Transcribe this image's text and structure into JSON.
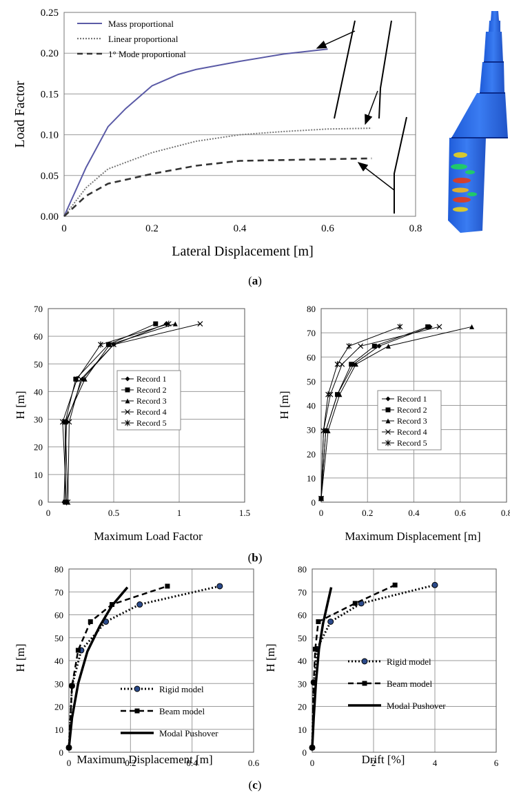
{
  "captions": {
    "a": "a",
    "b": "b",
    "c": "c"
  },
  "chart_data": [
    {
      "id": "a",
      "type": "line",
      "xlabel": "Lateral Displacement [m]",
      "ylabel": "Load Factor",
      "xlim": [
        0,
        0.8
      ],
      "ylim": [
        0,
        0.25
      ],
      "xticks": [
        "0",
        "0.2",
        "0.4",
        "0.6",
        "0.8"
      ],
      "yticks": [
        "0.00",
        "0.05",
        "0.10",
        "0.15",
        "0.20",
        "0.25"
      ],
      "grid": "horizontal",
      "legend_position": "top-left",
      "series": [
        {
          "name": "Mass proportional",
          "style": "solid",
          "color": "#5a5aa6",
          "x": [
            0,
            0.05,
            0.1,
            0.14,
            0.2,
            0.26,
            0.3,
            0.4,
            0.5,
            0.6
          ],
          "y": [
            0,
            0.06,
            0.11,
            0.132,
            0.16,
            0.174,
            0.18,
            0.19,
            0.199,
            0.205
          ]
        },
        {
          "name": "Linear proportional",
          "style": "dotted",
          "color": "#777777",
          "x": [
            0,
            0.05,
            0.1,
            0.2,
            0.3,
            0.4,
            0.5,
            0.6,
            0.7
          ],
          "y": [
            0,
            0.035,
            0.058,
            0.078,
            0.092,
            0.1,
            0.104,
            0.107,
            0.108
          ]
        },
        {
          "name": "1° Mode proportional",
          "style": "dashed",
          "color": "#333333",
          "x": [
            0,
            0.05,
            0.1,
            0.2,
            0.3,
            0.4,
            0.5,
            0.6,
            0.7
          ],
          "y": [
            0,
            0.025,
            0.04,
            0.052,
            0.062,
            0.068,
            0.069,
            0.07,
            0.071
          ]
        }
      ],
      "annotations": "arrows pointing to deformed chimney profiles",
      "image": "chimney 3D model with stress contour"
    },
    {
      "id": "b-left",
      "type": "line",
      "xlabel": "Maximum Load Factor",
      "ylabel": "H [m]",
      "xlim": [
        0,
        1.5
      ],
      "ylim": [
        0,
        70
      ],
      "xticks": [
        "0",
        "0.5",
        "1",
        "1.5"
      ],
      "yticks": [
        "0",
        "10",
        "20",
        "30",
        "40",
        "50",
        "60",
        "70"
      ],
      "grid": "both",
      "legend_position": "center",
      "series": [
        {
          "name": "Record 1",
          "marker": "diamond",
          "x": [
            0.12,
            0.14,
            0.26,
            0.5,
            0.9
          ],
          "y": [
            0,
            29,
            44.5,
            57,
            64.5
          ]
        },
        {
          "name": "Record 2",
          "marker": "square",
          "x": [
            0.13,
            0.13,
            0.21,
            0.46,
            0.82
          ],
          "y": [
            0,
            29,
            44.5,
            57,
            64.5
          ]
        },
        {
          "name": "Record 3",
          "marker": "triangle",
          "x": [
            0.15,
            0.13,
            0.28,
            0.47,
            0.97
          ],
          "y": [
            0,
            29,
            44.5,
            57,
            64.5
          ]
        },
        {
          "name": "Record 4",
          "marker": "x",
          "x": [
            0.15,
            0.16,
            0.25,
            0.5,
            1.16
          ],
          "y": [
            0,
            29,
            44.5,
            57,
            64.5
          ]
        },
        {
          "name": "Record 5",
          "marker": "star",
          "x": [
            0.14,
            0.11,
            0.22,
            0.4,
            0.92
          ],
          "y": [
            0,
            29,
            44.5,
            57,
            64.5
          ]
        }
      ]
    },
    {
      "id": "b-right",
      "type": "line",
      "xlabel": "Maximum Displacement [m]",
      "ylabel": "H [m]",
      "xlim": [
        0,
        0.8
      ],
      "ylim": [
        0,
        80
      ],
      "xticks": [
        "0",
        "0.2",
        "0.4",
        "0.6",
        "0.8"
      ],
      "yticks": [
        "0",
        "10",
        "20",
        "30",
        "40",
        "50",
        "60",
        "70",
        "80"
      ],
      "grid": "both",
      "legend_position": "center",
      "series": [
        {
          "name": "Record 1",
          "marker": "diamond",
          "x": [
            0,
            0.02,
            0.07,
            0.14,
            0.25,
            0.47
          ],
          "y": [
            1.5,
            29.5,
            44.5,
            57,
            64.5,
            72.5
          ]
        },
        {
          "name": "Record 2",
          "marker": "square",
          "x": [
            0,
            0.02,
            0.07,
            0.13,
            0.23,
            0.46
          ],
          "y": [
            1.5,
            29.5,
            44.5,
            57,
            64.5,
            72.5
          ]
        },
        {
          "name": "Record 3",
          "marker": "triangle",
          "x": [
            0,
            0.03,
            0.08,
            0.15,
            0.29,
            0.65
          ],
          "y": [
            1.5,
            29.5,
            44.5,
            57,
            64.5,
            72.5
          ]
        },
        {
          "name": "Record 4",
          "marker": "x",
          "x": [
            0,
            0.01,
            0.04,
            0.09,
            0.17,
            0.51
          ],
          "y": [
            1.5,
            29.5,
            44.5,
            57,
            64.5,
            72.5
          ]
        },
        {
          "name": "Record 5",
          "marker": "star",
          "x": [
            0,
            0.01,
            0.03,
            0.07,
            0.12,
            0.34
          ],
          "y": [
            1.5,
            29.5,
            44.5,
            57,
            64.5,
            72.5
          ]
        }
      ]
    },
    {
      "id": "c-left",
      "type": "line",
      "xlabel": "Maximum Displacement [m]",
      "ylabel": "H [m]",
      "xlim": [
        0,
        0.6
      ],
      "ylim": [
        0,
        80
      ],
      "xticks": [
        "0",
        "0.2",
        "0.4",
        "0.6"
      ],
      "yticks": [
        "0",
        "10",
        "20",
        "30",
        "40",
        "50",
        "60",
        "70",
        "80"
      ],
      "grid": "both",
      "legend_position": "bottom-right",
      "series": [
        {
          "name": "Rigid model",
          "style": "dotted",
          "marker": "circle",
          "x": [
            0,
            0.01,
            0.04,
            0.12,
            0.23,
            0.49
          ],
          "y": [
            2,
            29,
            44.5,
            57,
            64.5,
            72.5
          ]
        },
        {
          "name": "Beam model",
          "style": "dashed",
          "marker": "square",
          "x": [
            0,
            0.01,
            0.03,
            0.07,
            0.14,
            0.32
          ],
          "y": [
            2,
            29,
            44.5,
            57,
            64.5,
            72.5
          ]
        },
        {
          "name": "Modal Pushover",
          "style": "solid",
          "x": [
            0,
            0.01,
            0.03,
            0.06,
            0.1,
            0.14,
            0.19
          ],
          "y": [
            2,
            15,
            30,
            44,
            55,
            64,
            72
          ]
        }
      ]
    },
    {
      "id": "c-right",
      "type": "line",
      "xlabel": "Drift [%]",
      "ylabel": "H [m]",
      "xlim": [
        0,
        6
      ],
      "ylim": [
        0,
        80
      ],
      "xticks": [
        "0",
        "2",
        "4",
        "6"
      ],
      "yticks": [
        "0",
        "10",
        "20",
        "30",
        "40",
        "50",
        "60",
        "70",
        "80"
      ],
      "grid": "both",
      "legend_position": "center-right",
      "series": [
        {
          "name": "Rigid model",
          "style": "dotted",
          "marker": "circle",
          "x": [
            0,
            0.05,
            0.15,
            0.6,
            1.6,
            4.0
          ],
          "y": [
            2,
            30.5,
            45,
            57,
            65,
            73
          ]
        },
        {
          "name": "Beam model",
          "style": "dashed",
          "marker": "square",
          "x": [
            0,
            0.05,
            0.1,
            0.2,
            1.4,
            2.7
          ],
          "y": [
            2,
            30.5,
            45,
            57,
            65,
            73
          ]
        },
        {
          "name": "Modal Pushover",
          "style": "solid",
          "x": [
            0,
            0.05,
            0.12,
            0.22,
            0.35,
            0.5,
            0.62
          ],
          "y": [
            2,
            15,
            30,
            45,
            56,
            65,
            72
          ]
        }
      ]
    }
  ]
}
